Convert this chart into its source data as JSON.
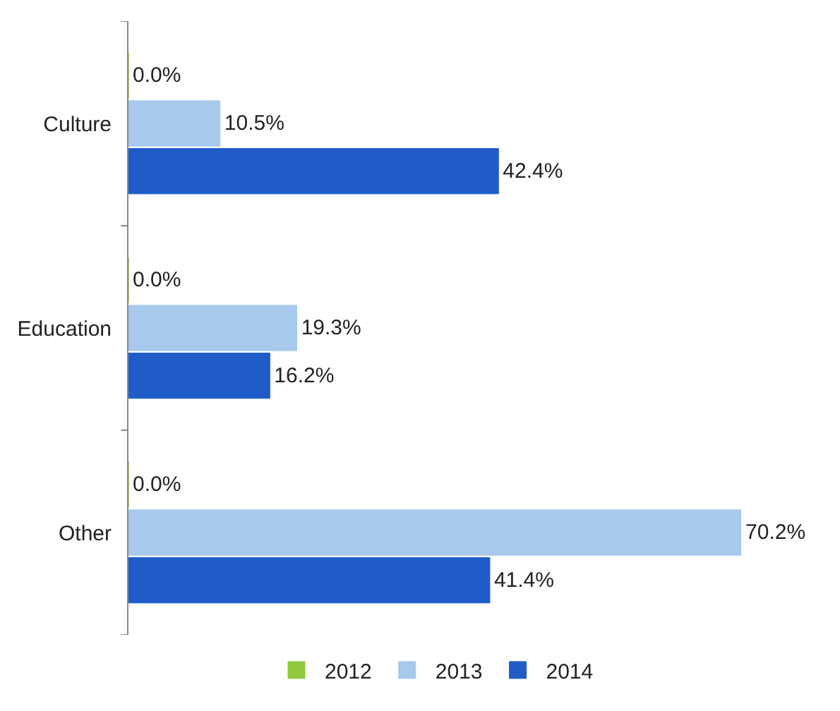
{
  "chart_data": {
    "type": "bar",
    "orientation": "horizontal",
    "categories": [
      "Culture",
      "Education",
      "Other"
    ],
    "series": [
      {
        "name": "2012",
        "color": "#92c83e",
        "values": [
          0.0,
          0.0,
          0.0
        ],
        "value_labels": [
          "0.0%",
          "0.0%",
          "0.0%"
        ]
      },
      {
        "name": "2013",
        "color": "#a6c9ec",
        "values": [
          10.5,
          19.3,
          70.2
        ],
        "value_labels": [
          "10.5%",
          "19.3%",
          "70.2%"
        ]
      },
      {
        "name": "2014",
        "color": "#1f5cc8",
        "values": [
          42.4,
          16.2,
          41.4
        ],
        "value_labels": [
          "42.4%",
          "16.2%",
          "41.4%"
        ]
      }
    ],
    "legend": "bottom"
  }
}
